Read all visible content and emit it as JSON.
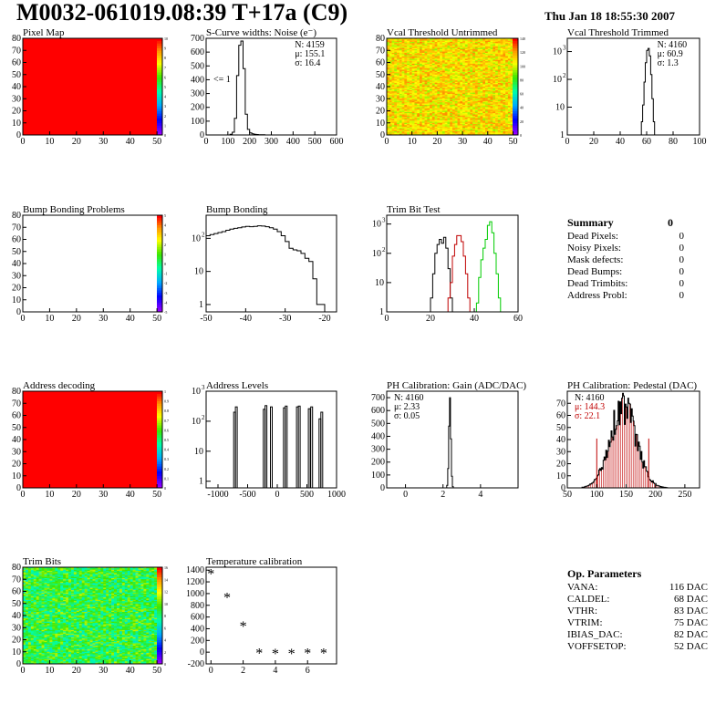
{
  "header": {
    "title": "M0032-061019.08:39 T+17a (C9)",
    "date": "Thu Jan 18 18:55:30 2007"
  },
  "colors": {
    "red": "#ff0000",
    "hist_line": "#000000",
    "trim_red": "#c00000",
    "trim_green": "#00cc00"
  },
  "chart_data": [
    {
      "id": "pixel_map",
      "type": "heatmap",
      "title": "Pixel Map",
      "xlim": [
        0,
        52
      ],
      "ylim": [
        0,
        80
      ],
      "xticks": [
        "0",
        "10",
        "20",
        "30",
        "40",
        "50"
      ],
      "yticks": [
        "0",
        "10",
        "20",
        "30",
        "40",
        "50",
        "60",
        "70",
        "80"
      ],
      "fill": "uniform_red",
      "palette_labels": [
        "0",
        "1",
        "2",
        "3",
        "4",
        "5",
        "6",
        "7",
        "8",
        "9",
        "10"
      ]
    },
    {
      "id": "scurve_noise",
      "type": "histogram",
      "title": "S-Curve widths: Noise (e⁻)",
      "xlim": [
        0,
        600
      ],
      "ylim": [
        0,
        700
      ],
      "xticks": [
        "0",
        "100",
        "200",
        "300",
        "400",
        "500",
        "600"
      ],
      "yticks": [
        "0",
        "100",
        "200",
        "300",
        "400",
        "500",
        "600",
        "700"
      ],
      "stats": [
        "N: 4159",
        "μ: 155.1",
        "σ: 16.4"
      ],
      "annotation": "<= 1",
      "bins": [
        [
          100,
          0
        ],
        [
          110,
          5
        ],
        [
          120,
          20
        ],
        [
          130,
          120
        ],
        [
          140,
          430
        ],
        [
          150,
          650
        ],
        [
          160,
          680
        ],
        [
          170,
          480
        ],
        [
          180,
          150
        ],
        [
          190,
          40
        ],
        [
          200,
          15
        ],
        [
          210,
          8
        ],
        [
          220,
          5
        ],
        [
          230,
          3
        ],
        [
          240,
          2
        ],
        [
          250,
          1
        ],
        [
          260,
          1
        ],
        [
          270,
          0
        ]
      ]
    },
    {
      "id": "vcal_untrimmed",
      "type": "heatmap",
      "title": "Vcal Threshold Untrimmed",
      "xlim": [
        0,
        52
      ],
      "ylim": [
        0,
        80
      ],
      "xticks": [
        "0",
        "10",
        "20",
        "30",
        "40",
        "50"
      ],
      "yticks": [
        "0",
        "10",
        "20",
        "30",
        "40",
        "50",
        "60",
        "70",
        "80"
      ],
      "fill": "noise_orange",
      "palette_labels": [
        "0",
        "20",
        "40",
        "60",
        "80",
        "100",
        "120",
        "140"
      ]
    },
    {
      "id": "vcal_trimmed",
      "type": "histogram",
      "title": "Vcal Threshold Trimmed",
      "ylog": true,
      "xlim": [
        0,
        100
      ],
      "ylim": [
        1,
        3000
      ],
      "xticks": [
        "0",
        "20",
        "40",
        "60",
        "80",
        "100"
      ],
      "stats": [
        "N: 4160",
        "μ: 60.9",
        "σ:  1.3"
      ],
      "bins": [
        [
          55,
          0
        ],
        [
          56,
          3
        ],
        [
          57,
          12
        ],
        [
          58,
          80
        ],
        [
          59,
          400
        ],
        [
          60,
          1100
        ],
        [
          61,
          1300
        ],
        [
          62,
          700
        ],
        [
          63,
          150
        ],
        [
          64,
          20
        ],
        [
          65,
          3
        ],
        [
          66,
          0
        ]
      ]
    },
    {
      "id": "bump_problems",
      "type": "heatmap",
      "title": "Bump Bonding Problems",
      "xlim": [
        0,
        52
      ],
      "ylim": [
        0,
        80
      ],
      "xticks": [
        "0",
        "10",
        "20",
        "30",
        "40",
        "50"
      ],
      "yticks": [
        "0",
        "10",
        "20",
        "30",
        "40",
        "50",
        "60",
        "70",
        "80"
      ],
      "fill": "empty",
      "palette_labels": [
        "-5",
        "-4",
        "-3",
        "-2",
        "-1",
        "0",
        "1",
        "2",
        "3",
        "4",
        "5"
      ]
    },
    {
      "id": "bump_bonding",
      "type": "histogram",
      "title": "Bump Bonding",
      "ylog": true,
      "xlim": [
        -50,
        -17
      ],
      "ylim": [
        0.6,
        500
      ],
      "xticks": [
        "-50",
        "-40",
        "-30",
        "-20"
      ],
      "bins": [
        [
          -50,
          120
        ],
        [
          -49,
          130
        ],
        [
          -48,
          140
        ],
        [
          -47,
          150
        ],
        [
          -46,
          160
        ],
        [
          -45,
          175
        ],
        [
          -44,
          190
        ],
        [
          -43,
          200
        ],
        [
          -42,
          210
        ],
        [
          -41,
          220
        ],
        [
          -40,
          230
        ],
        [
          -39,
          225
        ],
        [
          -38,
          230
        ],
        [
          -37,
          240
        ],
        [
          -36,
          235
        ],
        [
          -35,
          225
        ],
        [
          -34,
          210
        ],
        [
          -33,
          190
        ],
        [
          -32,
          160
        ],
        [
          -31,
          120
        ],
        [
          -30,
          80
        ],
        [
          -29,
          50
        ],
        [
          -28,
          45
        ],
        [
          -27,
          42
        ],
        [
          -26,
          35
        ],
        [
          -25,
          25
        ],
        [
          -24,
          20
        ],
        [
          -23,
          6
        ],
        [
          -22,
          1
        ],
        [
          -21,
          1
        ],
        [
          -20,
          0
        ]
      ]
    },
    {
      "id": "trim_bit_test",
      "type": "histogram",
      "title": "Trim Bit Test",
      "ylog": true,
      "xlim": [
        0,
        60
      ],
      "ylim": [
        1,
        2000
      ],
      "xticks": [
        "0",
        "20",
        "40",
        "60"
      ],
      "series": [
        {
          "color": "#000000",
          "bins": [
            [
              19,
              1
            ],
            [
              20,
              3
            ],
            [
              21,
              20
            ],
            [
              22,
              100
            ],
            [
              23,
              200
            ],
            [
              24,
              300
            ],
            [
              25,
              220
            ],
            [
              26,
              350
            ],
            [
              27,
              150
            ],
            [
              28,
              30
            ],
            [
              29,
              3
            ],
            [
              30,
              1
            ]
          ]
        },
        {
          "color": "#c00000",
          "bins": [
            [
              27,
              1
            ],
            [
              28,
              3
            ],
            [
              29,
              10
            ],
            [
              30,
              80
            ],
            [
              31,
              200
            ],
            [
              32,
              400
            ],
            [
              33,
              400
            ],
            [
              34,
              250
            ],
            [
              35,
              80
            ],
            [
              36,
              20
            ],
            [
              37,
              3
            ],
            [
              38,
              1
            ]
          ]
        },
        {
          "color": "#00cc00",
          "bins": [
            [
              40,
              1
            ],
            [
              41,
              2
            ],
            [
              42,
              15
            ],
            [
              43,
              60
            ],
            [
              44,
              150
            ],
            [
              45,
              300
            ],
            [
              46,
              900
            ],
            [
              47,
              1200
            ],
            [
              48,
              500
            ],
            [
              49,
              100
            ],
            [
              50,
              20
            ],
            [
              51,
              3
            ],
            [
              52,
              1
            ]
          ]
        }
      ]
    },
    {
      "id": "address_decoding",
      "type": "heatmap",
      "title": "Address decoding",
      "xlim": [
        0,
        52
      ],
      "ylim": [
        0,
        80
      ],
      "xticks": [
        "0",
        "10",
        "20",
        "30",
        "40",
        "50"
      ],
      "yticks": [
        "0",
        "10",
        "20",
        "30",
        "40",
        "50",
        "60",
        "70",
        "80"
      ],
      "fill": "uniform_red",
      "palette_labels": [
        "0",
        "0.1",
        "0.2",
        "0.3",
        "0.4",
        "0.5",
        "0.6",
        "0.7",
        "0.8",
        "0.9",
        "1"
      ]
    },
    {
      "id": "address_levels",
      "type": "histogram",
      "title": "Address Levels",
      "ylog": true,
      "xlim": [
        -1200,
        1000
      ],
      "ylim": [
        0.6,
        1000
      ],
      "xticks": [
        "-1000",
        "-500",
        "0",
        "500",
        "1000"
      ],
      "spikes": [
        [
          -720,
          200
        ],
        [
          -690,
          300
        ],
        [
          -220,
          250
        ],
        [
          -190,
          330
        ],
        [
          -100,
          300
        ],
        [
          120,
          280
        ],
        [
          150,
          320
        ],
        [
          340,
          300
        ],
        [
          370,
          320
        ],
        [
          540,
          260
        ],
        [
          580,
          300
        ],
        [
          720,
          120
        ],
        [
          750,
          200
        ]
      ]
    },
    {
      "id": "ph_gain",
      "type": "histogram",
      "title": "PH Calibration: Gain (ADC/DAC)",
      "xlim": [
        -1,
        6
      ],
      "ylim": [
        0,
        750
      ],
      "xticks": [
        "0",
        "2",
        "4"
      ],
      "yticks": [
        "0",
        "100",
        "200",
        "300",
        "400",
        "500",
        "600",
        "700"
      ],
      "stats": [
        "N: 4160",
        "μ: 2.33",
        "σ: 0.05"
      ],
      "bins": [
        [
          2.15,
          0
        ],
        [
          2.2,
          20
        ],
        [
          2.25,
          150
        ],
        [
          2.3,
          480
        ],
        [
          2.35,
          700
        ],
        [
          2.4,
          380
        ],
        [
          2.45,
          90
        ],
        [
          2.5,
          10
        ],
        [
          2.55,
          0
        ]
      ]
    },
    {
      "id": "ph_pedestal",
      "type": "histogram",
      "title": "PH Calibration: Pedestal (DAC)",
      "xlim": [
        50,
        275
      ],
      "ylim": [
        0,
        80
      ],
      "xticks": [
        "50",
        "100",
        "150",
        "200",
        "250"
      ],
      "yticks": [
        "0",
        "10",
        "20",
        "30",
        "40",
        "50",
        "60",
        "70"
      ],
      "stats": [
        "N: 4160",
        "μ: 144.3",
        "σ: 22.1"
      ],
      "stats_colors": [
        "#000000",
        "#c00000",
        "#c00000"
      ],
      "gaussian": {
        "mean": 144.3,
        "sigma": 22.1,
        "peak": 68
      }
    },
    {
      "id": "trim_bits",
      "type": "heatmap",
      "title": "Trim Bits",
      "xlim": [
        0,
        52
      ],
      "ylim": [
        0,
        80
      ],
      "xticks": [
        "0",
        "10",
        "20",
        "30",
        "40",
        "50"
      ],
      "yticks": [
        "0",
        "10",
        "20",
        "30",
        "40",
        "50",
        "60",
        "70",
        "80"
      ],
      "fill": "noise_green",
      "palette_labels": [
        "0",
        "2",
        "4",
        "6",
        "8",
        "10",
        "12",
        "14",
        "16"
      ]
    },
    {
      "id": "temp_cal",
      "type": "scatter",
      "title": "Temperature calibration",
      "xlim": [
        -0.3,
        7.8
      ],
      "ylim": [
        -200,
        1450
      ],
      "xticks": [
        "0",
        "2",
        "4",
        "6"
      ],
      "yticks": [
        "-200",
        "0",
        "200",
        "400",
        "600",
        "800",
        "1000",
        "1200",
        "1400"
      ],
      "x": [
        0,
        1,
        2,
        3,
        4,
        5,
        6,
        7
      ],
      "y": [
        1330,
        930,
        440,
        -20,
        -30,
        -30,
        -20,
        -20
      ]
    }
  ],
  "summary": {
    "title": "Summary",
    "total": "0",
    "rows": [
      {
        "label": "Dead Pixels:",
        "value": "0"
      },
      {
        "label": "Noisy Pixels:",
        "value": "0"
      },
      {
        "label": "Mask defects:",
        "value": "0"
      },
      {
        "label": "Dead Bumps:",
        "value": "0"
      },
      {
        "label": "Dead Trimbits:",
        "value": "0"
      },
      {
        "label": "Address Probl:",
        "value": "0"
      }
    ]
  },
  "op_parameters": {
    "title": "Op. Parameters",
    "rows": [
      {
        "label": "VANA:",
        "value": "116 DAC"
      },
      {
        "label": "CALDEL:",
        "value": "68 DAC"
      },
      {
        "label": "VTHR:",
        "value": "83 DAC"
      },
      {
        "label": "VTRIM:",
        "value": "75 DAC"
      },
      {
        "label": "IBIAS_DAC:",
        "value": "82 DAC"
      },
      {
        "label": "VOFFSETOP:",
        "value": "52 DAC"
      }
    ]
  }
}
